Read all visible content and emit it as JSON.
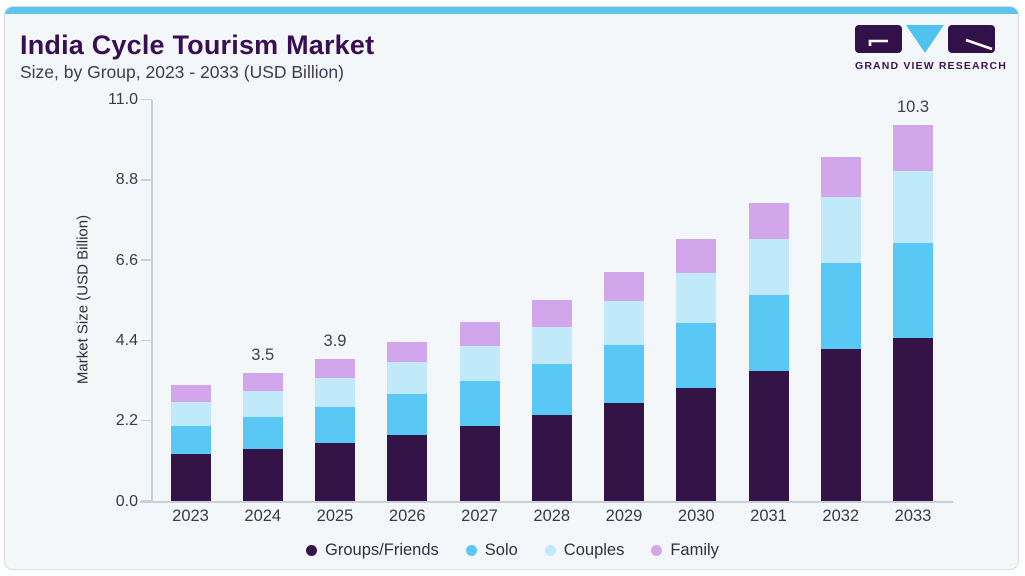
{
  "header": {
    "title": "India Cycle Tourism Market",
    "subtitle": "Size, by Group, 2023 - 2033 (USD Billion)"
  },
  "logo": {
    "text": "GRAND VIEW RESEARCH"
  },
  "colors": {
    "accent_strip": "#5EC4EB",
    "card_background": "#F3F7FA",
    "card_border": "#D5DBE1",
    "title_text": "#3A0E53",
    "axis_line": "#C9CFD8",
    "tick_text": "#3A3A46",
    "logo_purple": "#32114A",
    "logo_blue": "#4FC3EE"
  },
  "chart_data": {
    "type": "bar",
    "stacked": true,
    "title": "India Cycle Tourism Market Size, by Group, 2023 - 2033 (USD Billion)",
    "categories": [
      "2023",
      "2024",
      "2025",
      "2026",
      "2027",
      "2028",
      "2029",
      "2030",
      "2031",
      "2032",
      "2033"
    ],
    "series": [
      {
        "name": "Groups/Friends",
        "color": "#341447",
        "values": [
          1.3,
          1.42,
          1.6,
          1.81,
          2.06,
          2.36,
          2.69,
          3.1,
          3.57,
          4.16,
          4.47
        ]
      },
      {
        "name": "Solo",
        "color": "#5AC8F5",
        "values": [
          0.76,
          0.88,
          0.98,
          1.11,
          1.24,
          1.39,
          1.58,
          1.79,
          2.07,
          2.36,
          2.6
        ]
      },
      {
        "name": "Couples",
        "color": "#C0E9FA",
        "values": [
          0.66,
          0.72,
          0.79,
          0.88,
          0.94,
          1.03,
          1.21,
          1.36,
          1.54,
          1.8,
          1.98
        ]
      },
      {
        "name": "Family",
        "color": "#D2A6EB",
        "values": [
          0.46,
          0.48,
          0.53,
          0.55,
          0.67,
          0.73,
          0.79,
          0.93,
          0.99,
          1.1,
          1.25
        ]
      }
    ],
    "totals": [
      3.18,
      3.5,
      3.9,
      4.35,
      4.91,
      5.51,
      6.27,
      7.18,
      8.17,
      9.42,
      10.3
    ],
    "bar_labels": [
      "",
      "3.5",
      "3.9",
      "",
      "",
      "",
      "",
      "",
      "",
      "",
      "10.3"
    ],
    "ylabel": "Market Size (USD Billion)",
    "xlabel": "",
    "yticks": [
      0.0,
      2.2,
      4.4,
      6.6,
      8.8,
      11.0
    ],
    "ylim": [
      0,
      11.0
    ],
    "grid": false,
    "legend": [
      "Groups/Friends",
      "Solo",
      "Couples",
      "Family"
    ],
    "legend_position": "bottom"
  }
}
